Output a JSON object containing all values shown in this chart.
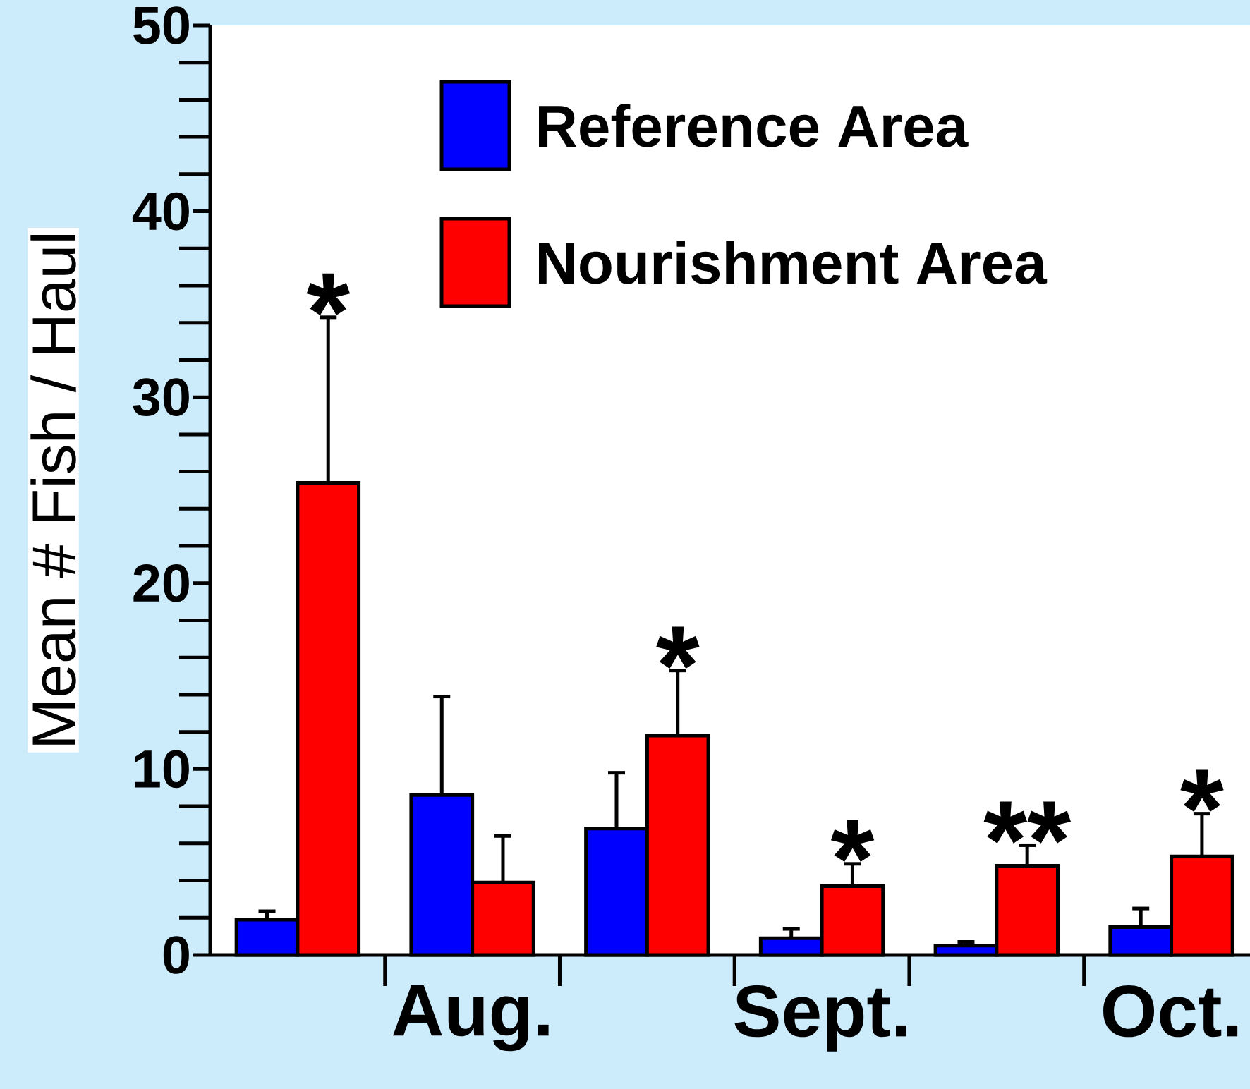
{
  "chart_data": {
    "type": "bar",
    "categories": [
      null,
      "Aug.",
      null,
      "Sept.",
      null,
      "Oct."
    ],
    "ylabel": "Mean # Fish / Haul",
    "ylim": [
      0,
      50
    ],
    "yticks": [
      0,
      10,
      20,
      30,
      40,
      50
    ],
    "legend": "top",
    "series": [
      {
        "name": "Reference Area",
        "color": "#0000ff",
        "values": [
          1.9,
          8.6,
          6.8,
          0.9,
          0.5,
          1.5
        ],
        "errors": [
          [
            1.9,
            2.35
          ],
          [
            8.6,
            13.9
          ],
          [
            6.8,
            9.8
          ],
          [
            0.9,
            1.4
          ],
          [
            0.5,
            0.7
          ],
          [
            1.5,
            2.5
          ]
        ]
      },
      {
        "name": "Nourishment Area",
        "color": "#ff0000",
        "values": [
          25.4,
          3.9,
          11.8,
          3.7,
          4.8,
          5.3
        ],
        "errors": [
          [
            25.4,
            34.3
          ],
          [
            3.9,
            6.4
          ],
          [
            11.8,
            15.3
          ],
          [
            3.7,
            4.9
          ],
          [
            4.8,
            5.9
          ],
          [
            5.3,
            7.6
          ]
        ],
        "value_labels": [
          "*",
          null,
          "*",
          "*",
          "**",
          "*"
        ]
      }
    ]
  }
}
